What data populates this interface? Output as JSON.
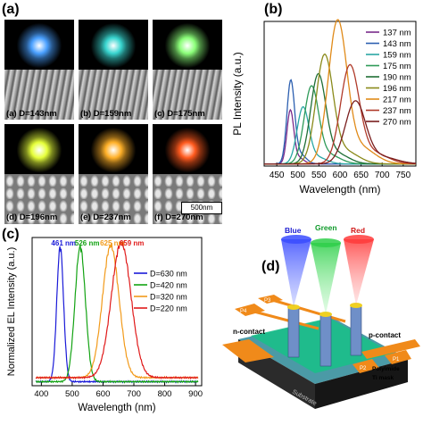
{
  "figure": {
    "panel_labels": {
      "a": "(a)",
      "b": "(b)",
      "c": "(c)",
      "d": "(d)"
    }
  },
  "micrographs": [
    {
      "caption": "(a)  D=143nm",
      "glow": "#4aa0ff"
    },
    {
      "caption": "(b)  D=159nm",
      "glow": "#39d6d0"
    },
    {
      "caption": "(c)  D=175nm",
      "glow": "#8cff7a"
    },
    {
      "caption": "(d)  D=196nm",
      "glow": "#e6ff3a"
    },
    {
      "caption": "(e)  D=237nm",
      "glow": "#ffb028"
    },
    {
      "caption": "(f)  D=270nm",
      "glow": "#ff5a1e"
    }
  ],
  "scalebar": {
    "label": "500nm"
  },
  "chart_data": [
    {
      "type": "line",
      "panel": "(b)",
      "xlabel": "Wavelength (nm)",
      "ylabel": "PL Intensity (a.u.)",
      "xlim": [
        420,
        780
      ],
      "xticks": [
        450,
        500,
        550,
        600,
        650,
        700,
        750
      ],
      "ylim": [
        0,
        1
      ],
      "legend": "top-right",
      "series": [
        {
          "name": "137 nm",
          "color": "#7a2a8a",
          "peak": 482,
          "amp": 0.36,
          "width": 8
        },
        {
          "name": "143 nm",
          "color": "#2c5fb0",
          "peak": 483,
          "amp": 0.56,
          "width": 9
        },
        {
          "name": "159 nm",
          "color": "#2aa7a4",
          "peak": 512,
          "amp": 0.38,
          "width": 14
        },
        {
          "name": "175 nm",
          "color": "#2e9a58",
          "peak": 532,
          "amp": 0.52,
          "width": 17
        },
        {
          "name": "190 nm",
          "color": "#1f6e35",
          "peak": 548,
          "amp": 0.6,
          "width": 18
        },
        {
          "name": "196 nm",
          "color": "#8a8a1a",
          "peak": 563,
          "amp": 0.73,
          "width": 20
        },
        {
          "name": "217 nm",
          "color": "#e08a18",
          "peak": 594,
          "amp": 0.96,
          "width": 22
        },
        {
          "name": "237 nm",
          "color": "#b03a2a",
          "peak": 623,
          "amp": 0.66,
          "width": 22
        },
        {
          "name": "270 nm",
          "color": "#7a1e1e",
          "peak": 636,
          "amp": 0.42,
          "width": 24
        }
      ]
    },
    {
      "type": "line",
      "panel": "(c)",
      "xlabel": "Wavelength (nm)",
      "ylabel": "Normalized EL Intensity (a.u.)",
      "xlim": [
        370,
        920
      ],
      "xticks": [
        400,
        500,
        600,
        700,
        800,
        900
      ],
      "ylim": [
        0,
        1.1
      ],
      "legend": "right",
      "peak_labels": [
        "461 nm",
        "526 nm",
        "625 nm",
        "659 nm"
      ],
      "series": [
        {
          "name": "D=630 nm",
          "color": "#1a1ad8",
          "peak": 461,
          "amp": 1.0,
          "width": 11
        },
        {
          "name": "D=420 nm",
          "color": "#13a313",
          "peak": 526,
          "amp": 1.0,
          "width": 17
        },
        {
          "name": "D=320 nm",
          "color": "#f29a1a",
          "peak": 625,
          "amp": 0.98,
          "width": 27
        },
        {
          "name": "D=220 nm",
          "color": "#e01a1a",
          "peak": 659,
          "amp": 1.0,
          "width": 32
        }
      ]
    }
  ],
  "device": {
    "beam_labels": {
      "blue": "Blue",
      "green": "Green",
      "red": "Red"
    },
    "pads": [
      "P1",
      "P2",
      "P3",
      "P4"
    ],
    "n_contact": "n-contact",
    "p_contact": "p-contact",
    "substrate": "Substrate",
    "polyimide": "Polyimide",
    "ti_mask": "Ti mask"
  }
}
